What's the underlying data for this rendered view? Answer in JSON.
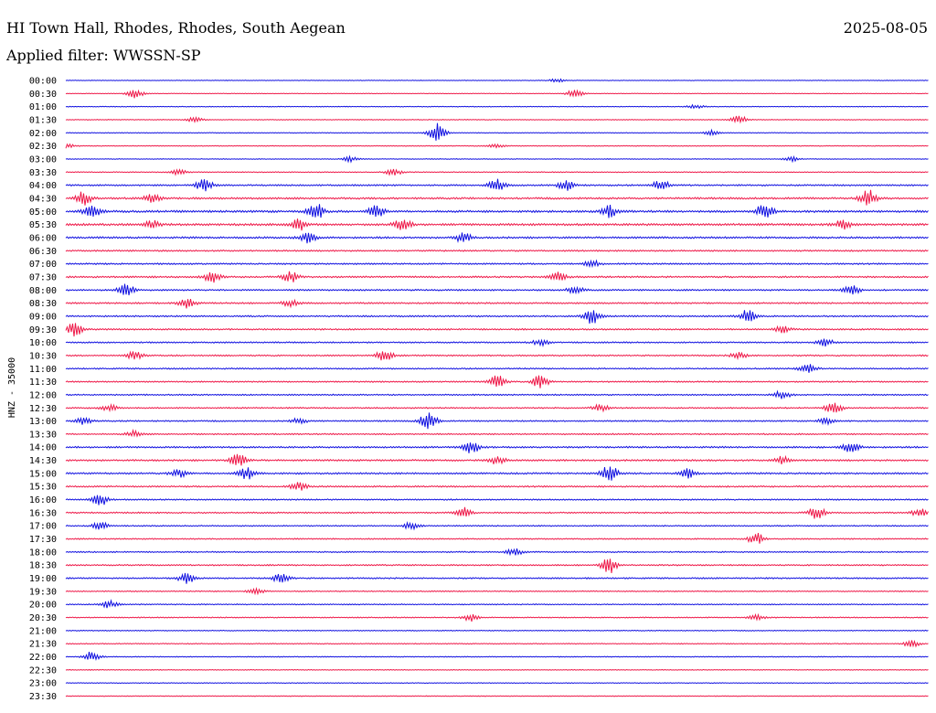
{
  "header": {
    "station_title": "HI Town Hall, Rhodes, Rhodes, South Aegean",
    "date": "2025-08-05",
    "filter_line": "Applied filter: WWSSN-SP"
  },
  "colors": {
    "trace_even": "#1010e0",
    "trace_odd": "#ee1848"
  },
  "chart_data": {
    "type": "line",
    "title": "HI Town Hall, Rhodes, Rhodes, South Aegean",
    "subtitle": "Applied filter: WWSSN-SP",
    "ylabel": "HNZ - 35000",
    "xlabel": "",
    "grid": false,
    "legend": "none",
    "row_interval_minutes": 30,
    "categories": [
      "00:00",
      "00:30",
      "01:00",
      "01:30",
      "02:00",
      "02:30",
      "03:00",
      "03:30",
      "04:00",
      "04:30",
      "05:00",
      "05:30",
      "06:00",
      "06:30",
      "07:00",
      "07:30",
      "08:00",
      "08:30",
      "09:00",
      "09:30",
      "10:00",
      "10:30",
      "11:00",
      "11:30",
      "12:00",
      "12:30",
      "13:00",
      "13:30",
      "14:00",
      "14:30",
      "15:00",
      "15:30",
      "16:00",
      "16:30",
      "17:00",
      "17:30",
      "18:00",
      "18:30",
      "19:00",
      "19:30",
      "20:00",
      "20:30",
      "21:00",
      "21:30",
      "22:00",
      "22:30",
      "23:00",
      "23:30"
    ],
    "series_colors_alternate": [
      "#1010e0",
      "#ee1848"
    ],
    "noise_level": [
      0.2,
      0.2,
      0.25,
      0.25,
      0.25,
      0.25,
      0.25,
      0.3,
      0.5,
      0.6,
      0.7,
      0.7,
      0.6,
      0.5,
      0.5,
      0.55,
      0.5,
      0.5,
      0.5,
      0.5,
      0.45,
      0.45,
      0.45,
      0.45,
      0.45,
      0.45,
      0.45,
      0.45,
      0.55,
      0.55,
      0.55,
      0.5,
      0.45,
      0.45,
      0.4,
      0.4,
      0.4,
      0.45,
      0.45,
      0.35,
      0.35,
      0.35,
      0.3,
      0.3,
      0.3,
      0.25,
      0.25,
      0.25
    ],
    "events": [
      {
        "row": 0,
        "t": 0.57,
        "amp": 0.3
      },
      {
        "row": 1,
        "t": 0.08,
        "amp": 0.7
      },
      {
        "row": 1,
        "t": 0.59,
        "amp": 0.6
      },
      {
        "row": 2,
        "t": 0.73,
        "amp": 0.3
      },
      {
        "row": 3,
        "t": 0.15,
        "amp": 0.4
      },
      {
        "row": 3,
        "t": 0.78,
        "amp": 0.6
      },
      {
        "row": 4,
        "t": 0.43,
        "amp": 1.5
      },
      {
        "row": 4,
        "t": 0.75,
        "amp": 0.4
      },
      {
        "row": 5,
        "t": 0.0,
        "amp": 0.4
      },
      {
        "row": 5,
        "t": 0.5,
        "amp": 0.3
      },
      {
        "row": 6,
        "t": 0.33,
        "amp": 0.4
      },
      {
        "row": 6,
        "t": 0.84,
        "amp": 0.4
      },
      {
        "row": 7,
        "t": 0.13,
        "amp": 0.4
      },
      {
        "row": 7,
        "t": 0.38,
        "amp": 0.5
      },
      {
        "row": 8,
        "t": 0.16,
        "amp": 1.0
      },
      {
        "row": 8,
        "t": 0.5,
        "amp": 0.9
      },
      {
        "row": 8,
        "t": 0.58,
        "amp": 0.8
      },
      {
        "row": 8,
        "t": 0.69,
        "amp": 0.8
      },
      {
        "row": 9,
        "t": 0.02,
        "amp": 1.2
      },
      {
        "row": 9,
        "t": 0.1,
        "amp": 0.6
      },
      {
        "row": 9,
        "t": 0.93,
        "amp": 1.3
      },
      {
        "row": 10,
        "t": 0.03,
        "amp": 1.0
      },
      {
        "row": 10,
        "t": 0.29,
        "amp": 1.2
      },
      {
        "row": 10,
        "t": 0.36,
        "amp": 0.9
      },
      {
        "row": 10,
        "t": 0.63,
        "amp": 0.9
      },
      {
        "row": 10,
        "t": 0.81,
        "amp": 1.3
      },
      {
        "row": 11,
        "t": 0.1,
        "amp": 0.7
      },
      {
        "row": 11,
        "t": 0.27,
        "amp": 0.9
      },
      {
        "row": 11,
        "t": 0.39,
        "amp": 1.0
      },
      {
        "row": 11,
        "t": 0.9,
        "amp": 0.7
      },
      {
        "row": 12,
        "t": 0.28,
        "amp": 0.8
      },
      {
        "row": 12,
        "t": 0.46,
        "amp": 0.8
      },
      {
        "row": 14,
        "t": 0.61,
        "amp": 0.5
      },
      {
        "row": 15,
        "t": 0.17,
        "amp": 0.9
      },
      {
        "row": 15,
        "t": 0.26,
        "amp": 0.9
      },
      {
        "row": 15,
        "t": 0.57,
        "amp": 0.7
      },
      {
        "row": 16,
        "t": 0.07,
        "amp": 0.9
      },
      {
        "row": 16,
        "t": 0.59,
        "amp": 0.6
      },
      {
        "row": 16,
        "t": 0.91,
        "amp": 0.8
      },
      {
        "row": 17,
        "t": 0.14,
        "amp": 0.8
      },
      {
        "row": 17,
        "t": 0.26,
        "amp": 0.5
      },
      {
        "row": 18,
        "t": 0.61,
        "amp": 1.3
      },
      {
        "row": 18,
        "t": 0.79,
        "amp": 1.0
      },
      {
        "row": 19,
        "t": 0.01,
        "amp": 1.1
      },
      {
        "row": 19,
        "t": 0.83,
        "amp": 0.5
      },
      {
        "row": 20,
        "t": 0.55,
        "amp": 0.5
      },
      {
        "row": 20,
        "t": 0.88,
        "amp": 0.6
      },
      {
        "row": 21,
        "t": 0.08,
        "amp": 0.6
      },
      {
        "row": 21,
        "t": 0.37,
        "amp": 1.0
      },
      {
        "row": 21,
        "t": 0.78,
        "amp": 0.5
      },
      {
        "row": 22,
        "t": 0.86,
        "amp": 0.7
      },
      {
        "row": 23,
        "t": 0.5,
        "amp": 1.0
      },
      {
        "row": 23,
        "t": 0.55,
        "amp": 1.0
      },
      {
        "row": 24,
        "t": 0.83,
        "amp": 0.6
      },
      {
        "row": 25,
        "t": 0.05,
        "amp": 0.5
      },
      {
        "row": 25,
        "t": 0.62,
        "amp": 0.5
      },
      {
        "row": 25,
        "t": 0.89,
        "amp": 0.9
      },
      {
        "row": 26,
        "t": 0.02,
        "amp": 0.5
      },
      {
        "row": 26,
        "t": 0.27,
        "amp": 0.4
      },
      {
        "row": 26,
        "t": 0.42,
        "amp": 1.4
      },
      {
        "row": 26,
        "t": 0.88,
        "amp": 0.5
      },
      {
        "row": 27,
        "t": 0.08,
        "amp": 0.5
      },
      {
        "row": 28,
        "t": 0.47,
        "amp": 0.9
      },
      {
        "row": 28,
        "t": 0.91,
        "amp": 0.8
      },
      {
        "row": 29,
        "t": 0.2,
        "amp": 1.0
      },
      {
        "row": 29,
        "t": 0.5,
        "amp": 0.6
      },
      {
        "row": 29,
        "t": 0.83,
        "amp": 0.6
      },
      {
        "row": 30,
        "t": 0.13,
        "amp": 0.6
      },
      {
        "row": 30,
        "t": 0.21,
        "amp": 0.9
      },
      {
        "row": 30,
        "t": 0.63,
        "amp": 1.3
      },
      {
        "row": 30,
        "t": 0.72,
        "amp": 0.7
      },
      {
        "row": 31,
        "t": 0.27,
        "amp": 0.6
      },
      {
        "row": 32,
        "t": 0.04,
        "amp": 0.9
      },
      {
        "row": 33,
        "t": 0.46,
        "amp": 0.9
      },
      {
        "row": 33,
        "t": 0.87,
        "amp": 1.0
      },
      {
        "row": 33,
        "t": 0.99,
        "amp": 0.6
      },
      {
        "row": 34,
        "t": 0.04,
        "amp": 0.6
      },
      {
        "row": 34,
        "t": 0.4,
        "amp": 0.5
      },
      {
        "row": 35,
        "t": 0.8,
        "amp": 0.9
      },
      {
        "row": 36,
        "t": 0.52,
        "amp": 0.5
      },
      {
        "row": 37,
        "t": 0.63,
        "amp": 1.3
      },
      {
        "row": 38,
        "t": 0.14,
        "amp": 0.8
      },
      {
        "row": 38,
        "t": 0.25,
        "amp": 0.8
      },
      {
        "row": 39,
        "t": 0.22,
        "amp": 0.4
      },
      {
        "row": 40,
        "t": 0.05,
        "amp": 0.6
      },
      {
        "row": 41,
        "t": 0.47,
        "amp": 0.6
      },
      {
        "row": 41,
        "t": 0.8,
        "amp": 0.4
      },
      {
        "row": 43,
        "t": 0.98,
        "amp": 0.5
      },
      {
        "row": 44,
        "t": 0.03,
        "amp": 0.8
      }
    ]
  }
}
